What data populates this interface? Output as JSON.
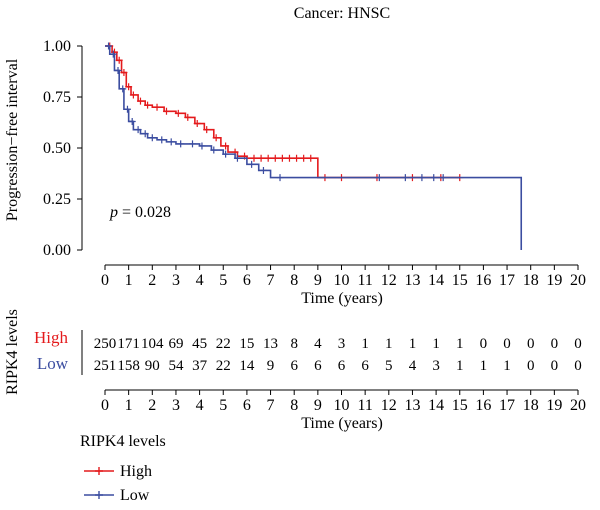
{
  "chart_data": {
    "type": "line",
    "subtype": "kaplan-meier",
    "title": "Cancer: HNSC",
    "xlabel": "Time (years)",
    "ylabel": "Progression−free interval",
    "xlim": [
      0,
      20
    ],
    "ylim": [
      0,
      1
    ],
    "x_ticks": [
      "0",
      "1",
      "2",
      "3",
      "4",
      "5",
      "6",
      "7",
      "8",
      "9",
      "10",
      "11",
      "12",
      "13",
      "14",
      "15",
      "16",
      "17",
      "18",
      "19",
      "20"
    ],
    "y_ticks": [
      "0.00",
      "0.25",
      "0.50",
      "0.75",
      "1.00"
    ],
    "annotation": {
      "p_label": "p",
      "p_value": " = 0.028"
    },
    "grid": false,
    "series": [
      {
        "name": "High",
        "color": "#e41a1c",
        "x": [
          0,
          0.3,
          0.5,
          0.7,
          0.9,
          1.1,
          1.4,
          1.7,
          2.0,
          2.5,
          3.0,
          3.4,
          3.8,
          4.2,
          4.6,
          4.9,
          5.2,
          5.6,
          6.0,
          9.0,
          15.0
        ],
        "y": [
          1.0,
          0.97,
          0.93,
          0.87,
          0.8,
          0.76,
          0.73,
          0.71,
          0.7,
          0.68,
          0.67,
          0.65,
          0.62,
          0.59,
          0.55,
          0.51,
          0.48,
          0.46,
          0.45,
          0.355,
          0.355
        ],
        "censor_x": [
          0.2,
          0.4,
          0.6,
          0.8,
          1.0,
          1.2,
          1.5,
          1.8,
          2.2,
          2.6,
          3.1,
          3.5,
          3.9,
          4.3,
          4.7,
          5.1,
          5.5,
          5.9,
          6.3,
          6.6,
          6.9,
          7.2,
          7.5,
          7.8,
          8.1,
          8.4,
          8.7,
          9.3,
          10.0,
          11.5,
          13.0,
          14.2,
          15.0
        ]
      },
      {
        "name": "Low",
        "color": "#3b4da0",
        "x": [
          0,
          0.2,
          0.4,
          0.6,
          0.8,
          1.0,
          1.2,
          1.5,
          1.8,
          2.2,
          2.6,
          3.0,
          3.5,
          4.0,
          4.5,
          5.0,
          5.5,
          6.0,
          6.5,
          7.0,
          9.0,
          17.6
        ],
        "y": [
          1.0,
          0.96,
          0.88,
          0.79,
          0.69,
          0.63,
          0.59,
          0.57,
          0.55,
          0.54,
          0.53,
          0.52,
          0.52,
          0.51,
          0.49,
          0.47,
          0.45,
          0.42,
          0.39,
          0.355,
          0.355,
          0.0
        ],
        "censor_x": [
          0.15,
          0.35,
          0.55,
          0.75,
          0.95,
          1.15,
          1.4,
          1.7,
          2.0,
          2.4,
          2.8,
          3.2,
          3.7,
          4.1,
          4.6,
          5.1,
          5.6,
          6.2,
          6.7,
          7.4,
          11.6,
          12.7,
          13.4,
          13.9,
          14.3
        ]
      }
    ],
    "risk_table": {
      "ylabel": "RIPK4 levels",
      "xlabel": "Time (years)",
      "rows": [
        {
          "name": "High",
          "color": "#e41a1c",
          "counts": [
            "250",
            "171",
            "104",
            "69",
            "45",
            "22",
            "15",
            "13",
            "8",
            "4",
            "3",
            "1",
            "1",
            "1",
            "1",
            "1",
            "0",
            "0",
            "0",
            "0",
            "0"
          ]
        },
        {
          "name": "Low",
          "color": "#3b4da0",
          "counts": [
            "251",
            "158",
            "90",
            "54",
            "37",
            "22",
            "14",
            "9",
            "6",
            "6",
            "6",
            "6",
            "5",
            "4",
            "3",
            "1",
            "1",
            "1",
            "0",
            "0",
            "0"
          ]
        }
      ]
    },
    "legend": {
      "title": "RIPK4 levels",
      "placement": "bottom-left",
      "items": [
        {
          "label": "High",
          "color": "#e41a1c"
        },
        {
          "label": "Low",
          "color": "#3b4da0"
        }
      ]
    }
  }
}
